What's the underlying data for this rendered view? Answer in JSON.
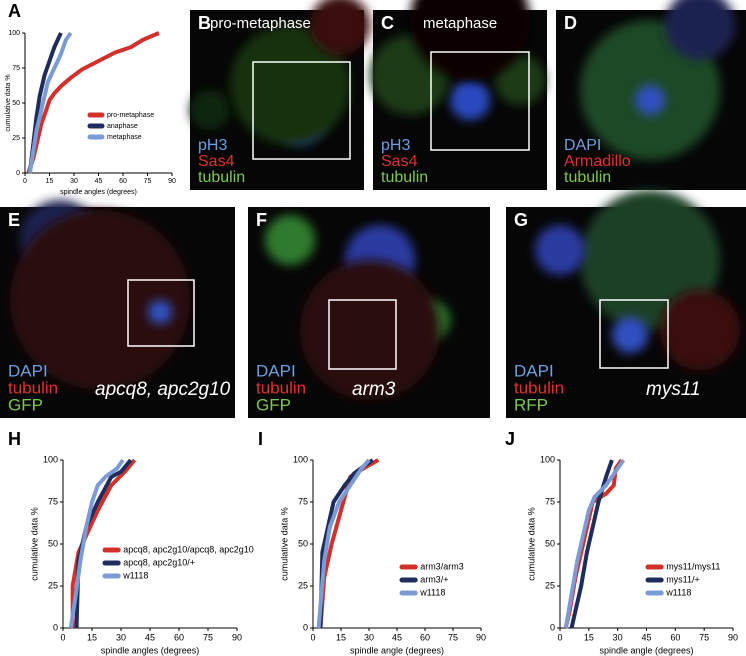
{
  "panels": [
    {
      "letter": "B",
      "title": "pro-metaphase",
      "labels": [
        {
          "text": "pH3",
          "color": "#6f9fe0"
        },
        {
          "text": "Sas4",
          "color": "#e03030"
        },
        {
          "text": "tubulin",
          "color": "#7ec850"
        }
      ]
    },
    {
      "letter": "C",
      "title": "metaphase",
      "labels": [
        {
          "text": "pH3",
          "color": "#6f9fe0"
        },
        {
          "text": "Sas4",
          "color": "#e03030"
        },
        {
          "text": "tubulin",
          "color": "#7ec850"
        }
      ]
    },
    {
      "letter": "D",
      "labels": [
        {
          "text": "DAPI",
          "color": "#6f9fe0"
        },
        {
          "text": "Armadillo",
          "color": "#e03030"
        },
        {
          "text": "tubulin",
          "color": "#7ec850"
        }
      ]
    },
    {
      "letter": "E",
      "genotype": "apcq8, apc2g10",
      "labels": [
        {
          "text": "DAPI",
          "color": "#6f9fe0"
        },
        {
          "text": "tubulin",
          "color": "#e03030"
        },
        {
          "text": "GFP",
          "color": "#7ec850"
        }
      ]
    },
    {
      "letter": "F",
      "genotype": "arm3",
      "labels": [
        {
          "text": "DAPI",
          "color": "#6f9fe0"
        },
        {
          "text": "tubulin",
          "color": "#e03030"
        },
        {
          "text": "GFP",
          "color": "#7ec850"
        }
      ]
    },
    {
      "letter": "G",
      "genotype": "mys11",
      "labels": [
        {
          "text": "DAPI",
          "color": "#6f9fe0"
        },
        {
          "text": "tubulin",
          "color": "#e03030"
        },
        {
          "text": "RFP",
          "color": "#7ec850"
        }
      ]
    }
  ],
  "chart_data": [
    {
      "type": "line",
      "panel": "A",
      "x_label": "spindle angles (degrees)",
      "y_label": "cumulative data %",
      "xlim": [
        0,
        90
      ],
      "xticks": [
        0,
        15,
        30,
        45,
        60,
        75,
        90
      ],
      "ylim": [
        0,
        100
      ],
      "yticks": [
        0,
        25,
        50,
        75,
        100
      ],
      "legend": "lower right",
      "series": [
        {
          "name": "pro-metaphase",
          "color": "#d2312b",
          "x": [
            2,
            5,
            8,
            10,
            13,
            15,
            18,
            22,
            28,
            35,
            45,
            55,
            65,
            72,
            82
          ],
          "values": [
            0,
            10,
            25,
            35,
            45,
            52,
            57,
            62,
            68,
            74,
            80,
            86,
            90,
            95,
            100
          ]
        },
        {
          "name": "anaphase",
          "color": "#1f2d5c",
          "x": [
            3,
            5,
            7,
            9,
            12,
            15,
            18,
            22
          ],
          "values": [
            0,
            20,
            40,
            55,
            70,
            80,
            90,
            100
          ]
        },
        {
          "name": "metaphase",
          "color": "#7b9bd6",
          "x": [
            3,
            5,
            7,
            10,
            12,
            14,
            18,
            22,
            25,
            28
          ],
          "values": [
            0,
            15,
            30,
            45,
            55,
            65,
            75,
            85,
            95,
            100
          ]
        }
      ]
    },
    {
      "type": "line",
      "panel": "H",
      "x_label": "spindle angles (degrees)",
      "y_label": "cumulative data %",
      "xlim": [
        0,
        90
      ],
      "xticks": [
        0,
        15,
        30,
        45,
        60,
        75,
        90
      ],
      "ylim": [
        0,
        100
      ],
      "yticks": [
        0,
        25,
        50,
        75,
        100
      ],
      "legend": "lower right",
      "series": [
        {
          "name": "apcq8, apc2g10/apcq8, apc2g10",
          "color": "#d2312b",
          "x": [
            5,
            5,
            8,
            12,
            18,
            25,
            32,
            37
          ],
          "values": [
            0,
            25,
            45,
            55,
            70,
            85,
            93,
            100
          ]
        },
        {
          "name": "apcq8, apc2g10/+",
          "color": "#1f2d5c",
          "x": [
            7,
            8,
            12,
            18,
            25,
            30,
            35
          ],
          "values": [
            0,
            40,
            60,
            75,
            90,
            93,
            100
          ]
        },
        {
          "name": "w1118",
          "color": "#7b9bd6",
          "x": [
            4,
            6,
            9,
            12,
            15,
            18,
            22,
            28,
            31
          ],
          "values": [
            0,
            15,
            40,
            60,
            75,
            85,
            90,
            95,
            100
          ]
        }
      ]
    },
    {
      "type": "line",
      "panel": "I",
      "x_label": "spindle angle (degrees)",
      "y_label": "cumulative data %",
      "xlim": [
        0,
        90
      ],
      "xticks": [
        0,
        15,
        30,
        45,
        60,
        75,
        90
      ],
      "ylim": [
        0,
        100
      ],
      "yticks": [
        0,
        25,
        50,
        75,
        100
      ],
      "legend": "lower right",
      "series": [
        {
          "name": "arm3/arm3",
          "color": "#d2312b",
          "x": [
            4,
            6,
            10,
            15,
            20,
            27,
            35
          ],
          "values": [
            0,
            30,
            50,
            70,
            90,
            95,
            100
          ]
        },
        {
          "name": "arm3/+",
          "color": "#1f2d5c",
          "x": [
            4,
            5,
            8,
            11,
            17,
            22,
            28,
            32
          ],
          "values": [
            0,
            45,
            60,
            75,
            85,
            92,
            97,
            100
          ]
        },
        {
          "name": "w1118",
          "color": "#7b9bd6",
          "x": [
            3,
            6,
            9,
            14,
            20,
            26,
            30
          ],
          "values": [
            0,
            40,
            60,
            75,
            85,
            95,
            100
          ]
        }
      ]
    },
    {
      "type": "line",
      "panel": "J",
      "x_label": "spindle angle (degrees)",
      "y_label": "cumulative data %",
      "xlim": [
        0,
        90
      ],
      "xticks": [
        0,
        15,
        30,
        45,
        60,
        75,
        90
      ],
      "ylim": [
        0,
        100
      ],
      "yticks": [
        0,
        25,
        50,
        75,
        100
      ],
      "legend": "lower right",
      "series": [
        {
          "name": "mys11/mys11",
          "color": "#d2312b",
          "x": [
            3,
            5,
            8,
            11,
            14,
            17,
            24,
            28,
            29,
            32
          ],
          "values": [
            0,
            10,
            30,
            45,
            60,
            75,
            80,
            85,
            95,
            100
          ]
        },
        {
          "name": "mys11/+",
          "color": "#1f2d5c",
          "x": [
            6,
            8,
            11,
            14,
            17,
            20,
            24,
            27
          ],
          "values": [
            0,
            10,
            25,
            45,
            60,
            75,
            90,
            100
          ]
        },
        {
          "name": "w1118",
          "color": "#7b9bd6",
          "x": [
            3,
            6,
            9,
            12,
            15,
            18,
            24,
            30,
            33
          ],
          "values": [
            0,
            20,
            40,
            55,
            70,
            78,
            85,
            95,
            100
          ]
        }
      ]
    }
  ]
}
